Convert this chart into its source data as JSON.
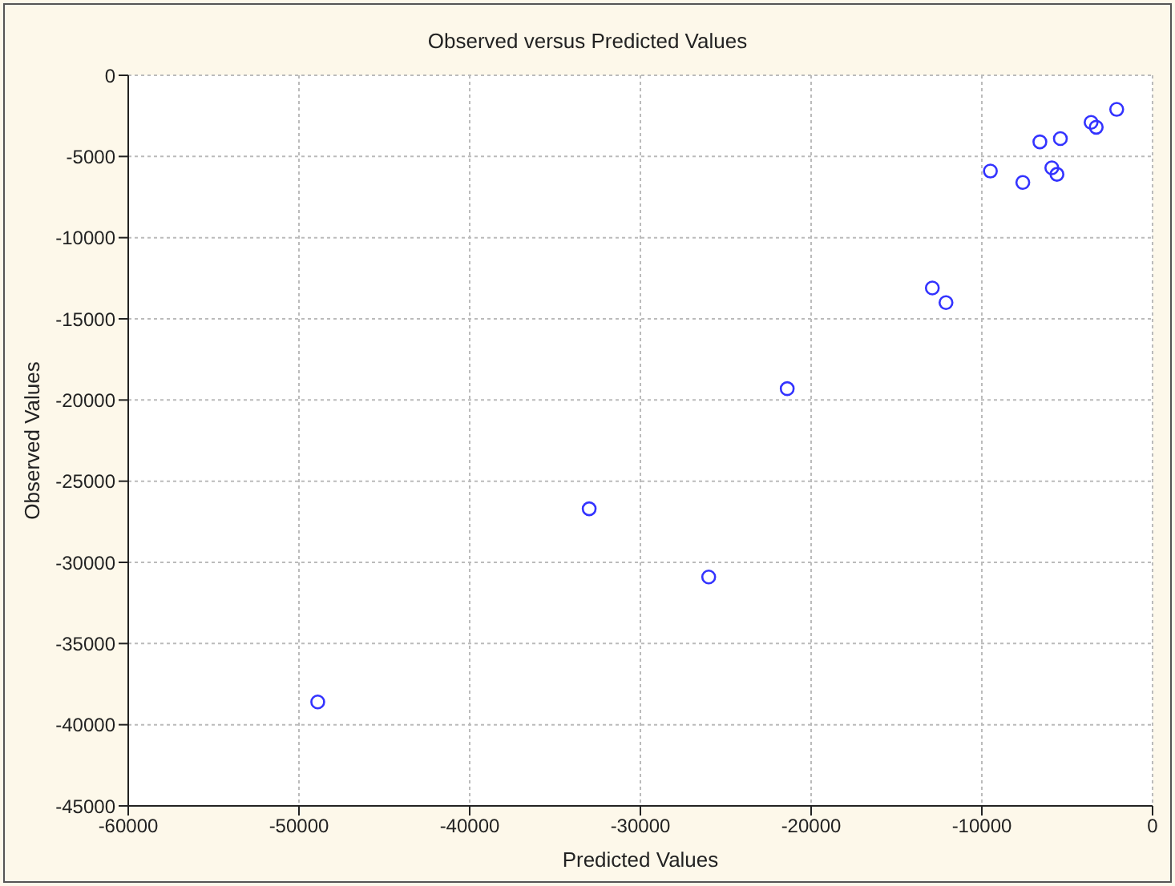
{
  "chart_data": {
    "type": "scatter",
    "title": "Observed versus Predicted Values",
    "xlabel": "Predicted Values",
    "ylabel": "Observed Values",
    "x": [
      -48900,
      -33000,
      -26000,
      -21400,
      -12900,
      -12100,
      -9500,
      -7600,
      -6600,
      -5900,
      -5600,
      -5400,
      -3600,
      -3300,
      -2100
    ],
    "values": [
      -38600,
      -26700,
      -30900,
      -19300,
      -13100,
      -14000,
      -5900,
      -6600,
      -4100,
      -5700,
      -6100,
      -3900,
      -2900,
      -3200,
      -2100
    ],
    "color": "#3333ff",
    "marker": "circle",
    "grid": true,
    "xlim": [
      -60000,
      0
    ],
    "xticks": [
      -60000,
      -50000,
      -40000,
      -30000,
      -20000,
      -10000,
      0
    ],
    "ylim": [
      -45000,
      0
    ],
    "yticks": [
      -45000,
      -40000,
      -35000,
      -30000,
      -25000,
      -20000,
      -15000,
      -10000,
      -5000,
      0
    ]
  }
}
